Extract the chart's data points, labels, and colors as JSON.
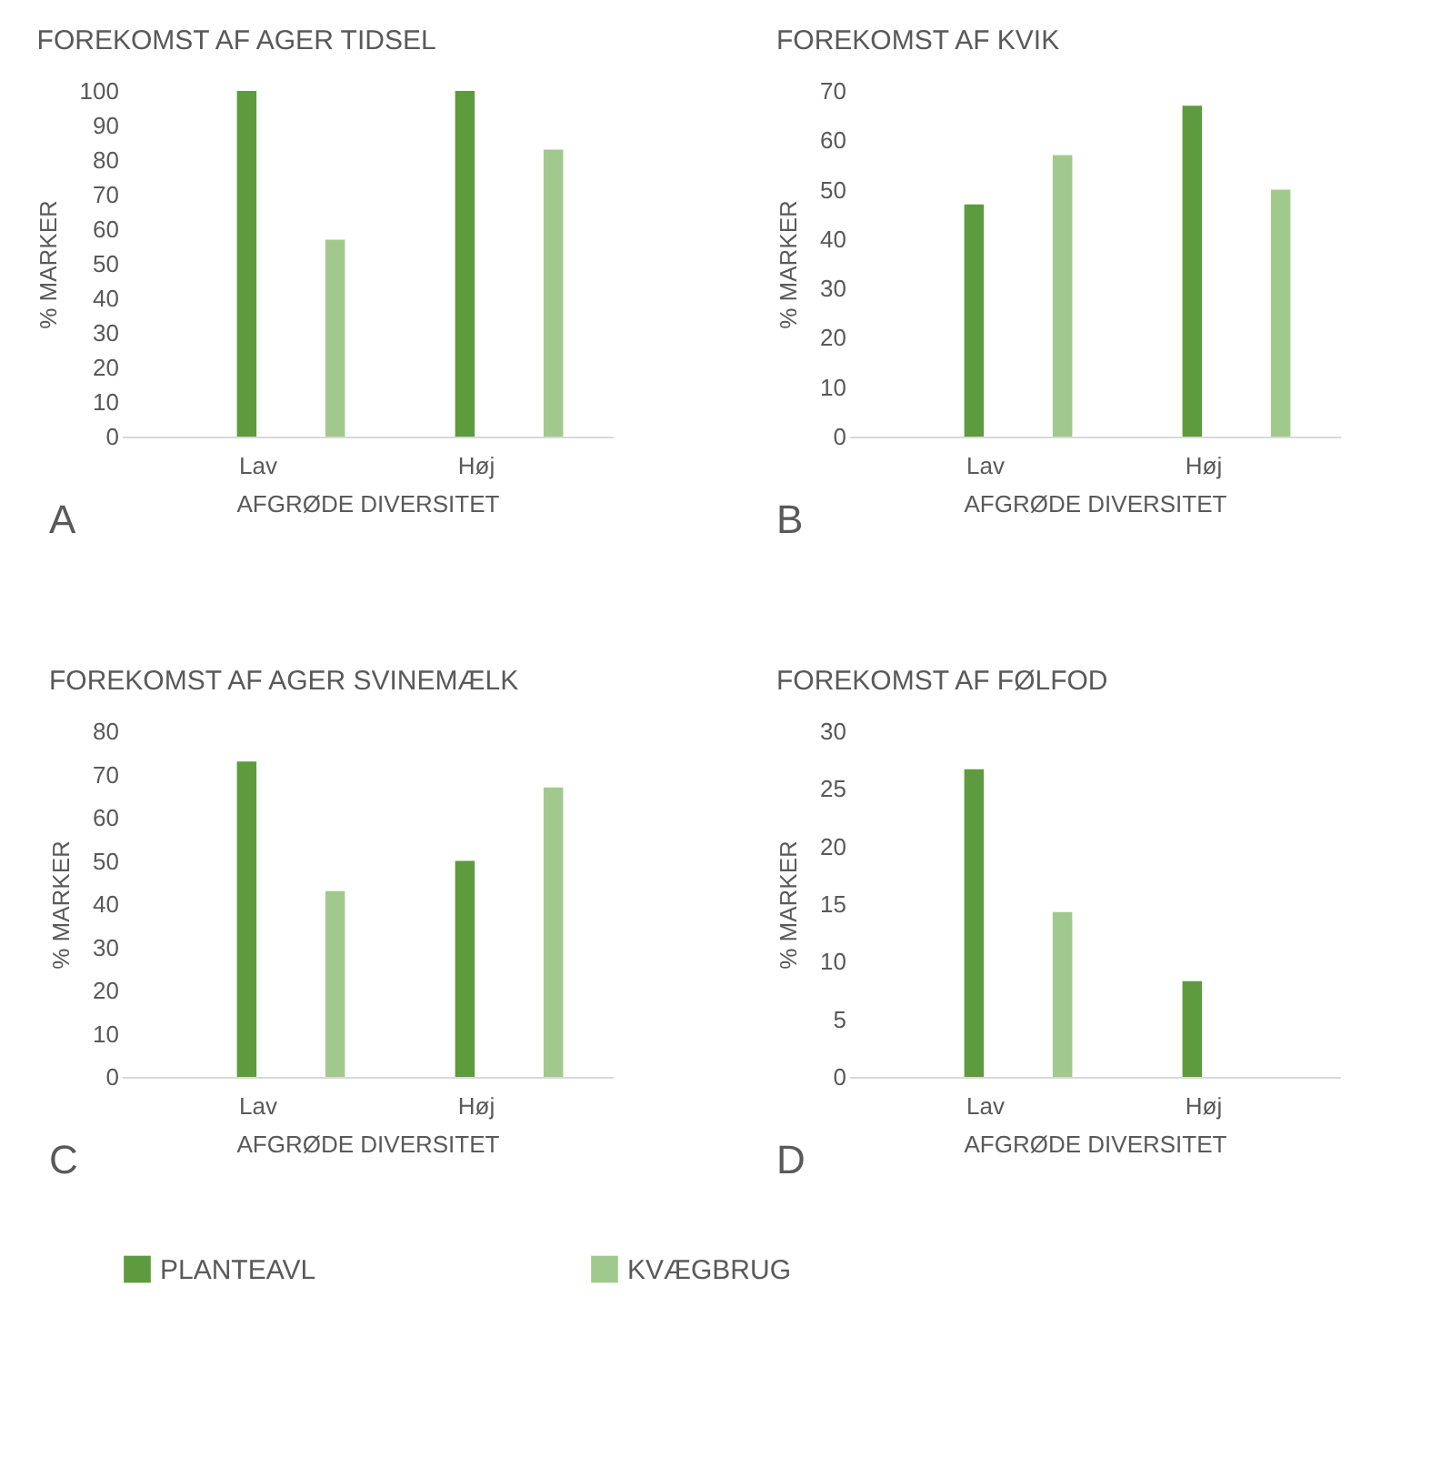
{
  "chart_data": [
    {
      "type": "bar",
      "title": "FOREKOMST AF AGER TIDSEL",
      "xlabel": "AFGRØDE DIVERSITET",
      "ylabel": "% MARKER",
      "categories": [
        "Lav",
        "Høj"
      ],
      "annotations": [
        "A"
      ],
      "ylim": [
        0,
        100
      ],
      "yticks": [
        0,
        10,
        20,
        30,
        40,
        50,
        60,
        70,
        80,
        90,
        100
      ],
      "grid": false,
      "legend": "bottom",
      "series": [
        {
          "name": "PLANTEAVL",
          "color": "#5e9a3e",
          "values": [
            100,
            100
          ]
        },
        {
          "name": "KVÆGBRUG",
          "color": "#a2c98d",
          "values": [
            57,
            83
          ]
        }
      ]
    },
    {
      "type": "bar",
      "title": "FOREKOMST AF KVIK",
      "xlabel": "AFGRØDE DIVERSITET",
      "ylabel": "% MARKER",
      "categories": [
        "Lav",
        "Høj"
      ],
      "annotations": [
        "B"
      ],
      "ylim": [
        0,
        70
      ],
      "yticks": [
        0,
        10,
        20,
        30,
        40,
        50,
        60,
        70
      ],
      "grid": false,
      "legend": "bottom",
      "series": [
        {
          "name": "PLANTEAVL",
          "color": "#5e9a3e",
          "values": [
            47,
            67
          ]
        },
        {
          "name": "KVÆGBRUG",
          "color": "#a2c98d",
          "values": [
            57,
            50
          ]
        }
      ]
    },
    {
      "type": "bar",
      "title": "FOREKOMST AF AGER SVINEMÆLK",
      "xlabel": "AFGRØDE DIVERSITET",
      "ylabel": "% MARKER",
      "categories": [
        "Lav",
        "Høj"
      ],
      "annotations": [
        "C"
      ],
      "ylim": [
        0,
        80
      ],
      "yticks": [
        0,
        10,
        20,
        30,
        40,
        50,
        60,
        70,
        80
      ],
      "grid": false,
      "legend": "bottom",
      "series": [
        {
          "name": "PLANTEAVL",
          "color": "#5e9a3e",
          "values": [
            73,
            50
          ]
        },
        {
          "name": "KVÆGBRUG",
          "color": "#a2c98d",
          "values": [
            43,
            67
          ]
        }
      ]
    },
    {
      "type": "bar",
      "title": "FOREKOMST AF FØLFOD",
      "xlabel": "AFGRØDE DIVERSITET",
      "ylabel": "% MARKER",
      "categories": [
        "Lav",
        "Høj"
      ],
      "annotations": [
        "D"
      ],
      "ylim": [
        0,
        30
      ],
      "yticks": [
        0,
        5,
        10,
        15,
        20,
        25,
        30
      ],
      "grid": false,
      "legend": "bottom",
      "series": [
        {
          "name": "PLANTEAVL",
          "color": "#5e9a3e",
          "values": [
            26.7,
            8.3
          ]
        },
        {
          "name": "KVÆGBRUG",
          "color": "#a2c98d",
          "values": [
            14.3,
            0
          ]
        }
      ]
    }
  ]
}
